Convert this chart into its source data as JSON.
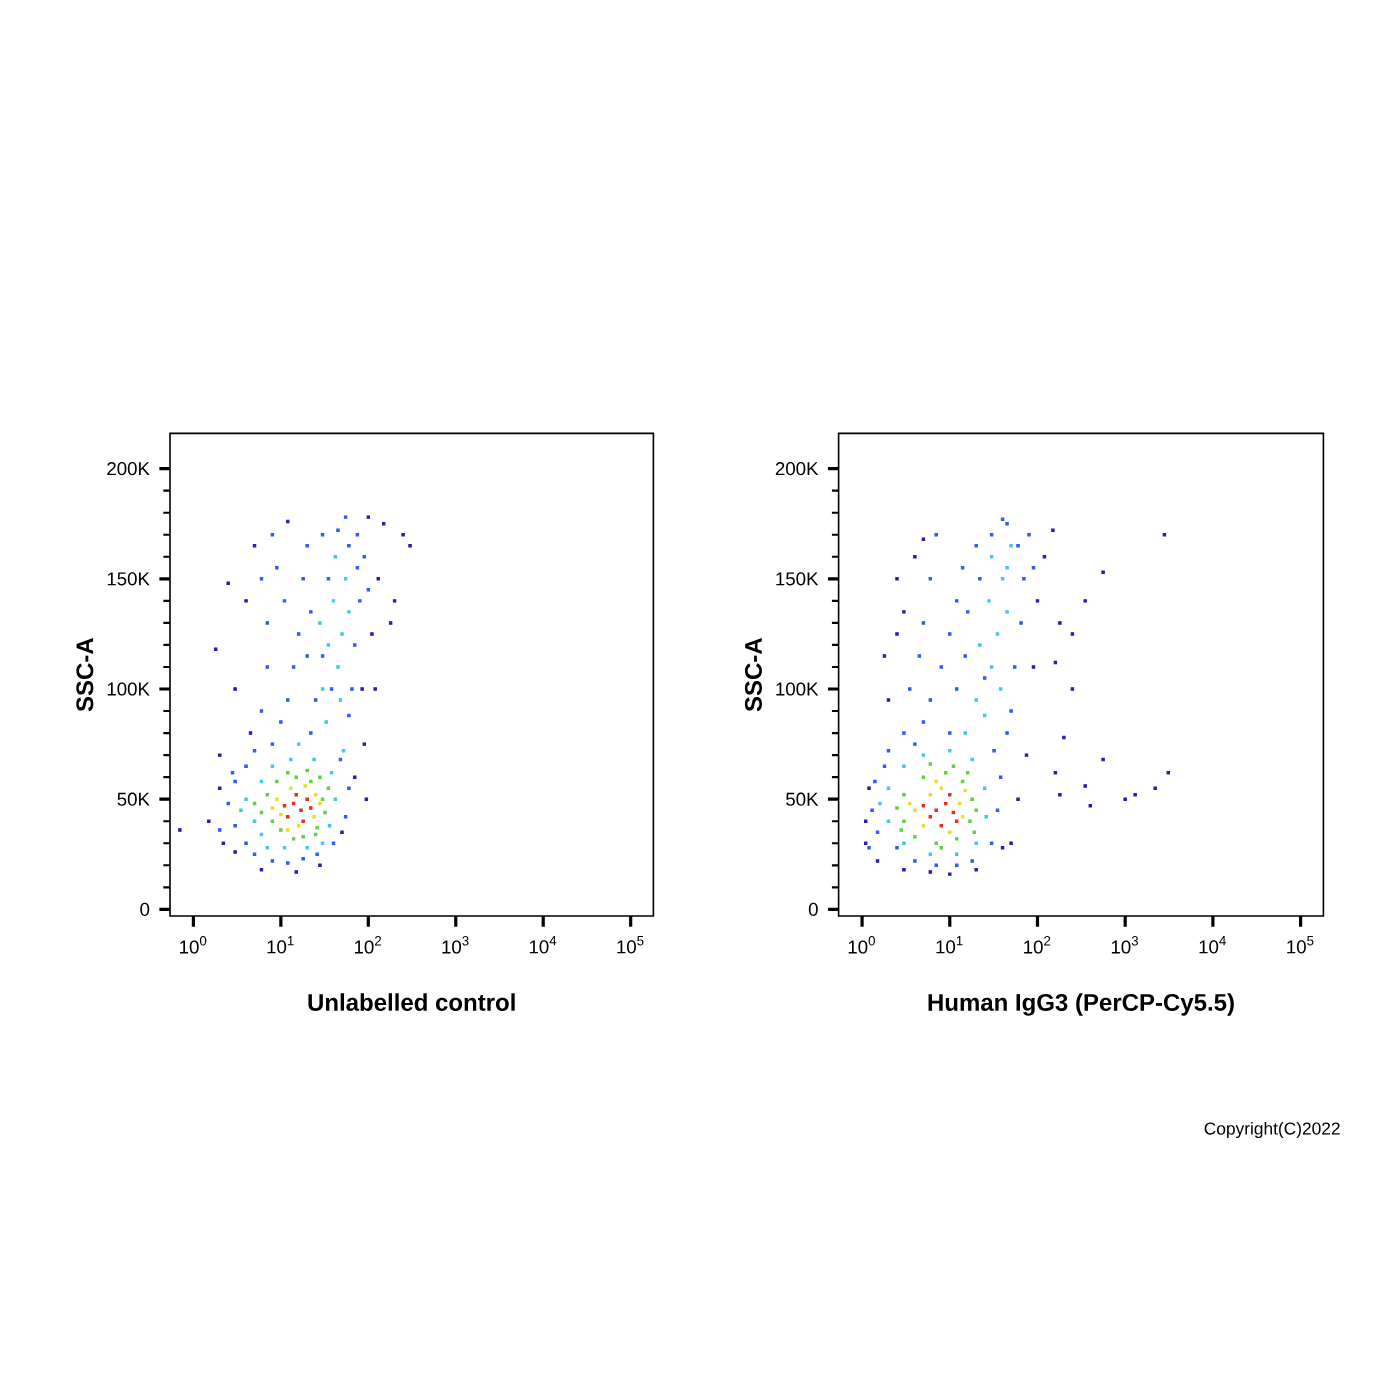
{
  "chart_data": [
    {
      "type": "scatter",
      "xlabel": "Unlabelled control",
      "ylabel": "SSC-A",
      "log": "x",
      "marker": "square",
      "xlim": [
        0.54,
        182000
      ],
      "ylim": [
        -3000,
        216000
      ],
      "xticks": [
        {
          "value": 1,
          "label": "10$^{0}$"
        },
        {
          "value": 10,
          "label": "10$^{1}$"
        },
        {
          "value": 100,
          "label": "10$^{2}$"
        },
        {
          "value": 1000,
          "label": "10$^{3}$"
        },
        {
          "value": 10000,
          "label": "10$^{4}$"
        },
        {
          "value": 100000,
          "label": "10$^{5}$"
        }
      ],
      "yticks": [
        0,
        {
          "value": 50000,
          "label": "50K"
        },
        {
          "value": 100000,
          "label": "100K"
        },
        {
          "value": 150000,
          "label": "150K"
        },
        {
          "value": 200000,
          "label": "200K"
        }
      ],
      "series": [
        {
          "color": "#2a1ab0",
          "x": [
            1.5,
            0.7,
            2,
            2.2,
            3,
            6,
            15,
            28,
            50,
            70,
            90,
            85,
            110,
            130,
            150,
            100,
            12,
            5,
            4,
            2.5,
            1.8,
            3,
            4.5,
            2,
            250,
            300,
            200,
            180,
            120,
            95
          ],
          "values": [
            40000,
            36000,
            55000,
            30000,
            26000,
            18000,
            17000,
            20000,
            35000,
            60000,
            75000,
            100000,
            125000,
            150000,
            175000,
            178000,
            176000,
            165000,
            140000,
            148000,
            118000,
            100000,
            80000,
            70000,
            170000,
            165000,
            140000,
            130000,
            100000,
            50000
          ]
        },
        {
          "color": "#2f5cf0",
          "x": [
            3,
            2.5,
            3,
            4,
            5,
            8,
            12,
            18,
            26,
            40,
            55,
            60,
            48,
            8,
            10,
            12,
            14,
            16,
            11,
            9,
            20,
            30,
            45,
            60,
            75,
            80,
            70,
            65,
            60,
            22,
            25,
            20,
            22,
            18,
            35,
            30,
            38,
            75,
            90,
            100,
            4,
            5,
            6,
            7,
            7,
            6,
            8,
            55,
            2,
            2.8
          ],
          "values": [
            38000,
            48000,
            58000,
            30000,
            25000,
            22000,
            21000,
            23000,
            25000,
            30000,
            42000,
            55000,
            68000,
            75000,
            85000,
            95000,
            110000,
            125000,
            140000,
            155000,
            165000,
            170000,
            172000,
            165000,
            155000,
            140000,
            120000,
            100000,
            88000,
            80000,
            95000,
            115000,
            135000,
            150000,
            150000,
            115000,
            100000,
            170000,
            160000,
            145000,
            65000,
            72000,
            90000,
            110000,
            130000,
            150000,
            170000,
            178000,
            36000,
            62000
          ]
        },
        {
          "color": "#40c8e8",
          "x": [
            5,
            4,
            6,
            8,
            13,
            24,
            38,
            42,
            36,
            30,
            20,
            11,
            6,
            45,
            50,
            40,
            55,
            35,
            60,
            48,
            30,
            42,
            28,
            3.5,
            7,
            16,
            52,
            33
          ],
          "values": [
            40000,
            50000,
            58000,
            65000,
            68000,
            68000,
            62000,
            50000,
            38000,
            30000,
            28000,
            28000,
            34000,
            110000,
            125000,
            140000,
            150000,
            120000,
            135000,
            95000,
            100000,
            160000,
            130000,
            45000,
            28000,
            75000,
            72000,
            85000
          ]
        },
        {
          "color": "#60d040",
          "x": [
            7,
            9,
            15,
            22,
            30,
            32,
            26,
            18,
            10,
            6,
            12,
            20,
            35,
            8,
            14,
            28,
            5,
            25
          ],
          "values": [
            52000,
            58000,
            60000,
            58000,
            50000,
            44000,
            37000,
            33000,
            36000,
            44000,
            62000,
            63000,
            55000,
            40000,
            32000,
            60000,
            48000,
            34000
          ]
        },
        {
          "color": "#e8e020",
          "x": [
            9,
            13,
            25,
            16,
            10,
            24,
            19,
            12,
            28,
            8
          ],
          "values": [
            50000,
            55000,
            52000,
            38000,
            43000,
            42000,
            56000,
            36000,
            48000,
            46000
          ]
        },
        {
          "color": "#e03020",
          "x": [
            14,
            17,
            12,
            20,
            15,
            11,
            18,
            22
          ],
          "values": [
            48000,
            45000,
            42000,
            50000,
            52000,
            47000,
            40000,
            46000
          ]
        }
      ]
    },
    {
      "type": "scatter",
      "xlabel": "Human IgG3 (PerCP-Cy5.5)",
      "ylabel": "SSC-A",
      "log": "x",
      "marker": "square",
      "xlim": [
        0.54,
        182000
      ],
      "ylim": [
        -3000,
        216000
      ],
      "xticks": [
        {
          "value": 1,
          "label": "10$^{0}$"
        },
        {
          "value": 10,
          "label": "10$^{1}$"
        },
        {
          "value": 100,
          "label": "10$^{2}$"
        },
        {
          "value": 1000,
          "label": "10$^{3}$"
        },
        {
          "value": 10000,
          "label": "10$^{4}$"
        },
        {
          "value": 100000,
          "label": "10$^{5}$"
        }
      ],
      "yticks": [
        0,
        {
          "value": 50000,
          "label": "50K"
        },
        {
          "value": 100000,
          "label": "100K"
        },
        {
          "value": 150000,
          "label": "150K"
        },
        {
          "value": 200000,
          "label": "200K"
        }
      ],
      "annotations": [
        "Copyright(C)2022"
      ],
      "series": [
        {
          "color": "#2a1ab0",
          "x": [
            1.1,
            1.2,
            1.1,
            1.5,
            3,
            6,
            10,
            20,
            50,
            60,
            75,
            90,
            100,
            120,
            2,
            1.8,
            2.5,
            3,
            4,
            5,
            2.5,
            150,
            180,
            200,
            160,
            350,
            400,
            560,
            1000,
            1300,
            2200,
            3100,
            2800,
            560,
            180,
            350,
            250,
            160,
            250,
            40
          ],
          "values": [
            40000,
            55000,
            30000,
            22000,
            18000,
            17000,
            16000,
            18000,
            30000,
            50000,
            70000,
            110000,
            140000,
            160000,
            95000,
            115000,
            125000,
            135000,
            160000,
            168000,
            150000,
            172000,
            130000,
            78000,
            62000,
            56000,
            47000,
            68000,
            50000,
            52000,
            55000,
            62000,
            170000,
            153000,
            52000,
            140000,
            125000,
            112000,
            100000,
            28000
          ]
        },
        {
          "color": "#2f5cf0",
          "x": [
            1.5,
            1.3,
            1.4,
            1.8,
            2.5,
            4,
            7,
            12,
            18,
            30,
            35,
            38,
            32,
            4,
            5,
            6,
            8,
            10,
            12,
            14,
            20,
            30,
            45,
            60,
            70,
            65,
            55,
            50,
            45,
            10,
            12,
            15,
            16,
            22,
            25,
            3,
            3.5,
            4.5,
            5,
            6,
            7,
            80,
            90,
            40,
            1.2,
            2
          ],
          "values": [
            35000,
            45000,
            58000,
            65000,
            28000,
            22000,
            20000,
            20000,
            22000,
            30000,
            45000,
            60000,
            72000,
            75000,
            85000,
            95000,
            110000,
            125000,
            140000,
            155000,
            165000,
            170000,
            175000,
            165000,
            150000,
            130000,
            110000,
            90000,
            80000,
            80000,
            100000,
            115000,
            135000,
            150000,
            105000,
            80000,
            100000,
            115000,
            130000,
            150000,
            170000,
            170000,
            155000,
            177000,
            28000,
            72000
          ]
        },
        {
          "color": "#40c8e8",
          "x": [
            2,
            2,
            3,
            5,
            10,
            18,
            25,
            26,
            20,
            12,
            6,
            3,
            30,
            35,
            28,
            40,
            45,
            22,
            38,
            30,
            50,
            20,
            1.6,
            15,
            25,
            45
          ],
          "values": [
            40000,
            55000,
            65000,
            70000,
            72000,
            68000,
            55000,
            42000,
            30000,
            25000,
            25000,
            30000,
            110000,
            125000,
            140000,
            150000,
            135000,
            120000,
            100000,
            160000,
            165000,
            95000,
            48000,
            80000,
            88000,
            155000
          ]
        },
        {
          "color": "#60d040",
          "x": [
            3,
            3,
            5,
            9,
            14,
            18,
            17,
            12,
            7,
            4,
            2.5,
            20,
            11,
            6,
            16,
            2.8,
            8,
            19
          ],
          "values": [
            40000,
            52000,
            60000,
            62000,
            58000,
            50000,
            40000,
            32000,
            30000,
            33000,
            46000,
            45000,
            65000,
            66000,
            62000,
            36000,
            28000,
            35000
          ]
        },
        {
          "color": "#e8e020",
          "x": [
            4,
            6,
            13,
            8,
            5,
            14,
            10,
            3.5,
            7,
            15
          ],
          "values": [
            45000,
            52000,
            48000,
            55000,
            38000,
            42000,
            35000,
            48000,
            58000,
            54000
          ]
        },
        {
          "color": "#e03020",
          "x": [
            7,
            9,
            6,
            10,
            8,
            11,
            5,
            12
          ],
          "values": [
            45000,
            48000,
            42000,
            52000,
            38000,
            44000,
            47000,
            40000
          ]
        }
      ]
    }
  ]
}
